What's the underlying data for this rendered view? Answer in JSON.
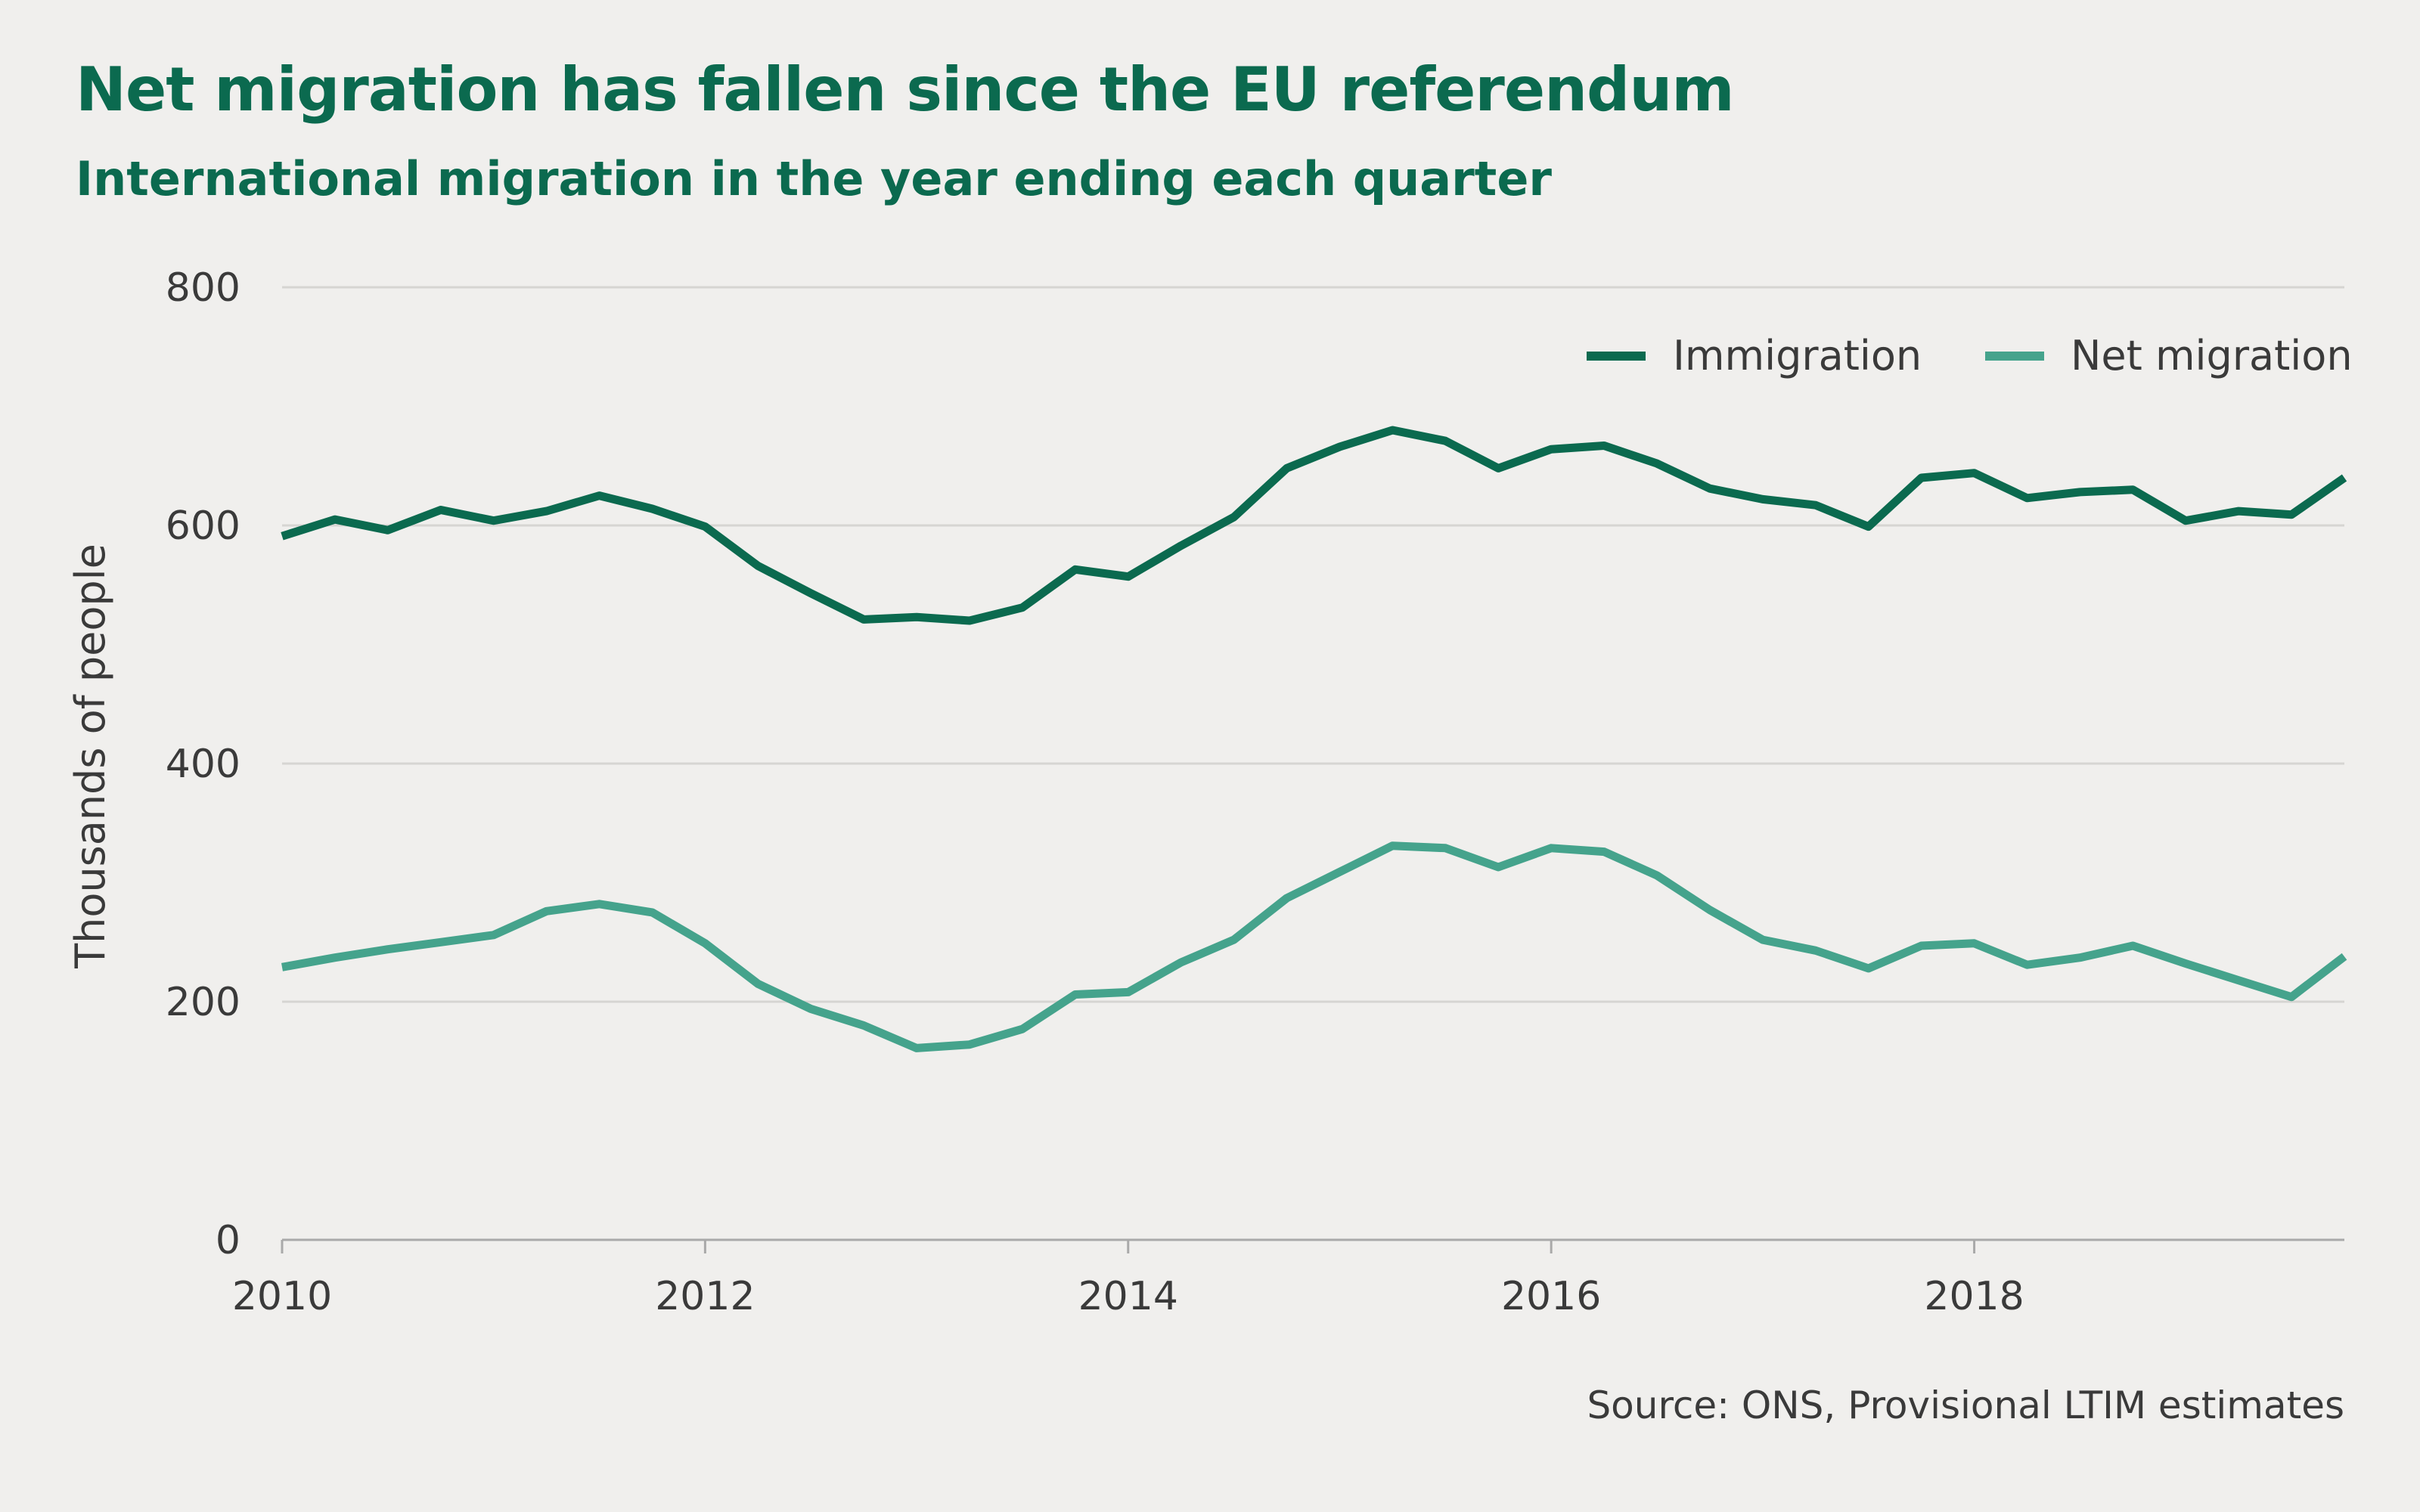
{
  "title": "Net migration has fallen since the EU referendum",
  "subtitle": "International migration in the year ending each quarter",
  "source": "Source: ONS, Provisional LTIM estimates",
  "colors": {
    "immigration": "#0b6a4f",
    "net_migration": "#45a38c",
    "grid": "#d6d5d2",
    "axis": "#a9a9a9",
    "background": "#f0efed"
  },
  "chart_data": {
    "type": "line",
    "ylabel": "Thousands of people",
    "ylim": [
      0,
      800
    ],
    "xlim": [
      2010,
      2019.75
    ],
    "yticks": [
      0,
      200,
      400,
      600,
      800
    ],
    "xticks": [
      2010,
      2012,
      2014,
      2016,
      2018
    ],
    "grid": true,
    "legend": "top-right",
    "x": [
      2010,
      2010.25,
      2010.5,
      2010.75,
      2011,
      2011.25,
      2011.5,
      2011.75,
      2012,
      2012.25,
      2012.5,
      2012.75,
      2013,
      2013.25,
      2013.5,
      2013.75,
      2014,
      2014.25,
      2014.5,
      2014.75,
      2015,
      2015.25,
      2015.5,
      2015.75,
      2016,
      2016.25,
      2016.5,
      2016.75,
      2017,
      2017.25,
      2017.5,
      2017.75,
      2018,
      2018.25,
      2018.5,
      2018.75,
      2019,
      2019.25,
      2019.5,
      2019.75
    ],
    "series": [
      {
        "name": "Immigration",
        "values": [
          591,
          605,
          596,
          613,
          604,
          612,
          625,
          614,
          599,
          566,
          543,
          521,
          523,
          520,
          531,
          563,
          557,
          583,
          607,
          648,
          666,
          680,
          671,
          648,
          664,
          667,
          652,
          631,
          622,
          617,
          599,
          640,
          644,
          623,
          628,
          630,
          604,
          612,
          609,
          640
        ]
      },
      {
        "name": "Net migration",
        "values": [
          229,
          237,
          244,
          250,
          256,
          276,
          282,
          275,
          249,
          215,
          194,
          180,
          161,
          164,
          177,
          206,
          208,
          233,
          252,
          287,
          309,
          331,
          329,
          313,
          329,
          326,
          306,
          277,
          252,
          243,
          228,
          247,
          249,
          231,
          237,
          247,
          232,
          218,
          204,
          238
        ]
      }
    ]
  }
}
